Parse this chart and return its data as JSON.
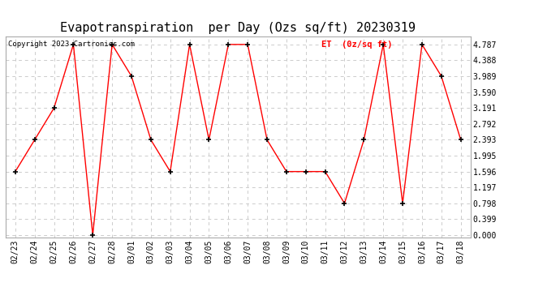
{
  "title": "Evapotranspiration  per Day (Ozs sq/ft) 20230319",
  "copyright": "Copyright 2023 Cartronics.com",
  "legend_label": "ET  (0z/sq ft)",
  "dates": [
    "02/23",
    "02/24",
    "02/25",
    "02/26",
    "02/27",
    "02/28",
    "03/01",
    "03/02",
    "03/03",
    "03/04",
    "03/05",
    "03/06",
    "03/07",
    "03/08",
    "03/09",
    "03/10",
    "03/11",
    "03/12",
    "03/13",
    "03/14",
    "03/15",
    "03/16",
    "03/17",
    "03/18"
  ],
  "values": [
    1.596,
    2.393,
    3.191,
    4.787,
    0.0,
    4.787,
    3.989,
    2.393,
    1.596,
    4.787,
    2.393,
    4.787,
    4.787,
    2.393,
    1.596,
    1.596,
    1.596,
    0.798,
    2.393,
    4.787,
    0.798,
    4.787,
    3.989,
    2.393
  ],
  "ylim": [
    -0.05,
    4.987
  ],
  "yticks": [
    0.0,
    0.399,
    0.798,
    1.197,
    1.596,
    1.995,
    2.393,
    2.792,
    3.191,
    3.59,
    3.989,
    4.388,
    4.787
  ],
  "line_color": "red",
  "marker": "+",
  "marker_color": "black",
  "bg_color": "#ffffff",
  "grid_color": "#cccccc",
  "title_fontsize": 11,
  "label_fontsize": 7.5,
  "tick_fontsize": 7,
  "copyright_fontsize": 6.5,
  "legend_color": "red"
}
